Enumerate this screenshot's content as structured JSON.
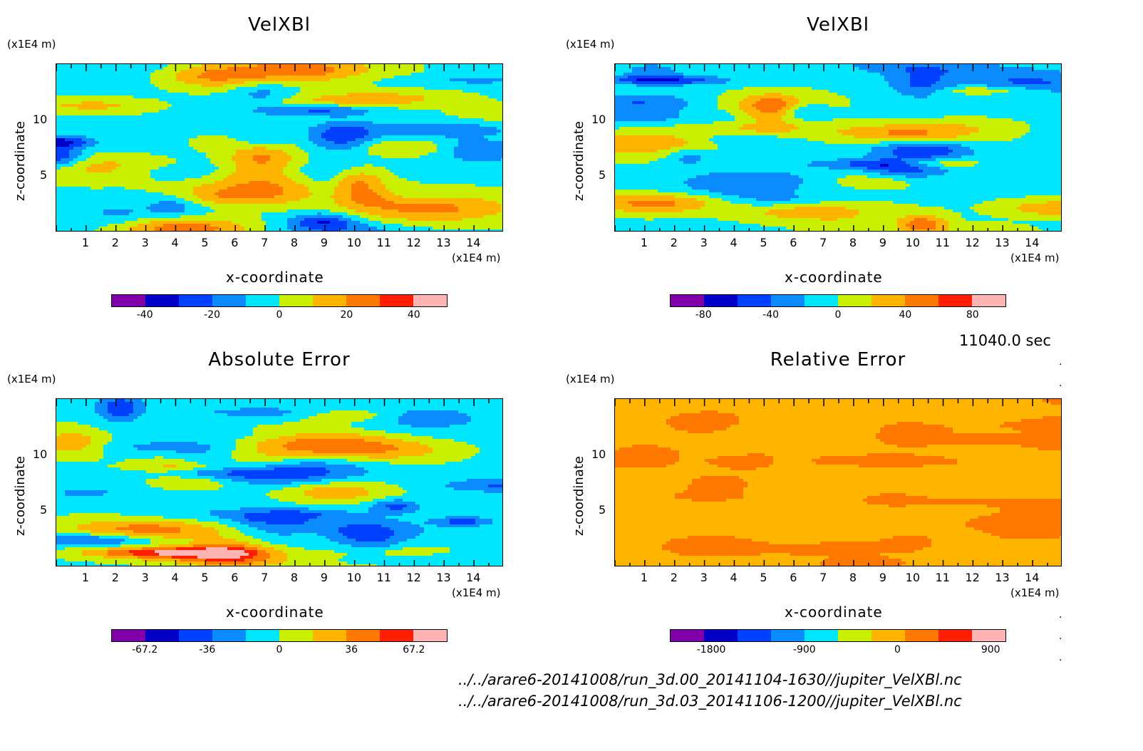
{
  "time_label": "11040.0 sec",
  "file_lines": [
    "../../arare6-20141008/run_3d.00_20141104-1630//jupiter_VelXBl.nc",
    "../../arare6-20141008/run_3d.03_20141106-1200//jupiter_VelXBl.nc"
  ],
  "colors": {
    "levels": [
      "#7f00a8",
      "#0000c8",
      "#0040ff",
      "#0a8cff",
      "#00e6ff",
      "#c8f000",
      "#ffb400",
      "#ff7800",
      "#ff1e00",
      "#ffb4b4"
    ]
  },
  "chart_data": [
    {
      "type": "heatmap",
      "title": "VelXBl",
      "xlabel": "x-coordinate",
      "ylabel": "z-coordinate",
      "x_unit": "(x1E4 m)",
      "y_unit": "(x1E4 m)",
      "xlim": [
        0,
        15
      ],
      "ylim": [
        0,
        15
      ],
      "x_ticks": [
        "1",
        "2",
        "3",
        "4",
        "5",
        "6",
        "7",
        "8",
        "9",
        "10",
        "11",
        "12",
        "13",
        "14"
      ],
      "y_ticks": [
        "5",
        "10"
      ],
      "colorbar_ticks": [
        "-40",
        "-20",
        "0",
        "20",
        "40"
      ],
      "colorbar_tick_values": [
        -40,
        -20,
        0,
        20,
        40
      ],
      "colorbar_range": [
        -50,
        50
      ]
    },
    {
      "type": "heatmap",
      "title": "VelXBl",
      "xlabel": "x-coordinate",
      "ylabel": "z-coordinate",
      "x_unit": "(x1E4 m)",
      "y_unit": "(x1E4 m)",
      "xlim": [
        0,
        15
      ],
      "ylim": [
        0,
        15
      ],
      "x_ticks": [
        "1",
        "2",
        "3",
        "4",
        "5",
        "6",
        "7",
        "8",
        "9",
        "10",
        "11",
        "12",
        "13",
        "14"
      ],
      "y_ticks": [
        "5",
        "10"
      ],
      "colorbar_ticks": [
        "-80",
        "-40",
        "0",
        "40",
        "80"
      ],
      "colorbar_tick_values": [
        -80,
        -40,
        0,
        40,
        80
      ],
      "colorbar_range": [
        -100,
        100
      ]
    },
    {
      "type": "heatmap",
      "title": "Absolute Error",
      "xlabel": "x-coordinate",
      "ylabel": "z-coordinate",
      "x_unit": "(x1E4 m)",
      "y_unit": "(x1E4 m)",
      "xlim": [
        0,
        15
      ],
      "ylim": [
        0,
        15
      ],
      "x_ticks": [
        "1",
        "2",
        "3",
        "4",
        "5",
        "6",
        "7",
        "8",
        "9",
        "10",
        "11",
        "12",
        "13",
        "14"
      ],
      "y_ticks": [
        "5",
        "10"
      ],
      "colorbar_ticks": [
        "-67.2",
        "-36",
        "0",
        "36",
        "67.2"
      ],
      "colorbar_tick_values": [
        -67.2,
        -36,
        0,
        36,
        67.2
      ],
      "colorbar_range": [
        -84,
        84
      ]
    },
    {
      "type": "heatmap",
      "title": "Relative Error",
      "xlabel": "x-coordinate",
      "ylabel": "z-coordinate",
      "x_unit": "(x1E4 m)",
      "y_unit": "(x1E4 m)",
      "xlim": [
        0,
        15
      ],
      "ylim": [
        0,
        15
      ],
      "x_ticks": [
        "1",
        "2",
        "3",
        "4",
        "5",
        "6",
        "7",
        "8",
        "9",
        "10",
        "11",
        "12",
        "13",
        "14"
      ],
      "y_ticks": [
        "5",
        "10"
      ],
      "colorbar_ticks": [
        "-1800",
        "-900",
        "0",
        "900"
      ],
      "colorbar_tick_values": [
        -1800,
        -900,
        0,
        900
      ],
      "colorbar_range": [
        -2200,
        1050
      ]
    }
  ]
}
